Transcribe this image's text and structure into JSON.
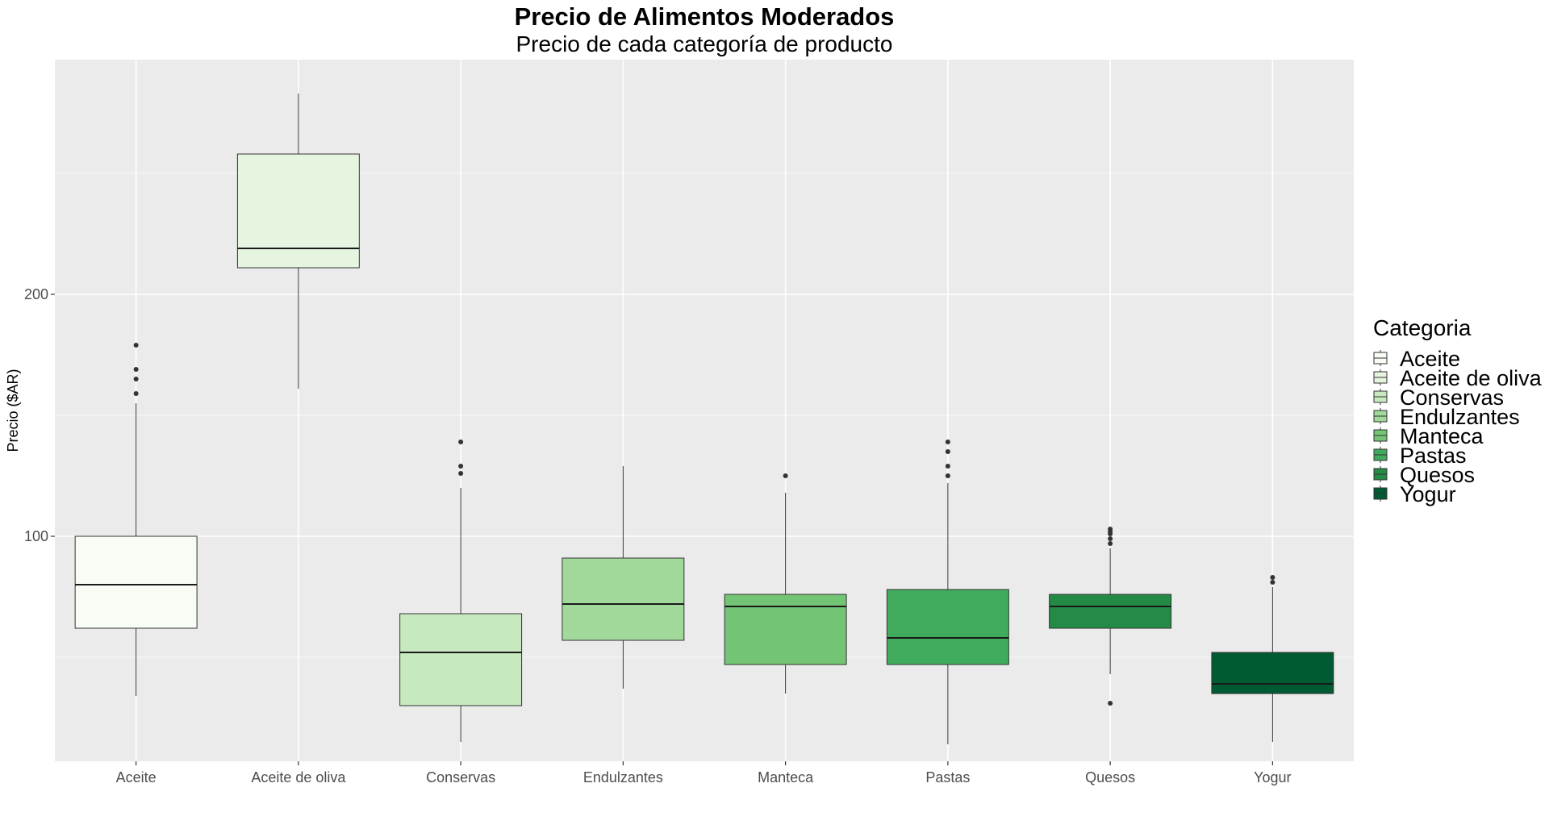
{
  "chart_data": {
    "type": "box",
    "title": "Precio de Alimentos Moderados",
    "subtitle": "Precio de cada categoría de producto",
    "xlabel": "",
    "ylabel": "Precio ($AR)",
    "ylim": [
      7,
      297
    ],
    "y_ticks": [
      100,
      200
    ],
    "grid": true,
    "legend_title": "Categoria",
    "legend_position": "right",
    "categories": [
      "Aceite",
      "Aceite de oliva",
      "Conservas",
      "Endulzantes",
      "Manteca",
      "Pastas",
      "Quesos",
      "Yogur"
    ],
    "boxes": [
      {
        "name": "Aceite",
        "whisker_low": 34,
        "q1": 62,
        "median": 80,
        "q3": 100,
        "whisker_high": 155,
        "outliers": [
          159,
          165,
          169,
          179
        ],
        "color": "#f7fcf5"
      },
      {
        "name": "Aceite de oliva",
        "whisker_low": 161,
        "q1": 211,
        "median": 219,
        "q3": 258,
        "whisker_high": 283,
        "outliers": [],
        "color": "#e5f5e0"
      },
      {
        "name": "Conservas",
        "whisker_low": 15,
        "q1": 30,
        "median": 52,
        "q3": 68,
        "whisker_high": 120,
        "outliers": [
          126,
          129,
          139
        ],
        "color": "#c7e9c0"
      },
      {
        "name": "Endulzantes",
        "whisker_low": 37,
        "q1": 57,
        "median": 72,
        "q3": 91,
        "whisker_high": 129,
        "outliers": [],
        "color": "#a1d99b"
      },
      {
        "name": "Manteca",
        "whisker_low": 35,
        "q1": 47,
        "median": 71,
        "q3": 76,
        "whisker_high": 118,
        "outliers": [
          125
        ],
        "color": "#74c476"
      },
      {
        "name": "Pastas",
        "whisker_low": 14,
        "q1": 47,
        "median": 58,
        "q3": 78,
        "whisker_high": 122,
        "outliers": [
          125,
          129,
          135,
          139
        ],
        "color": "#41ab5d"
      },
      {
        "name": "Quesos",
        "whisker_low": 43,
        "q1": 62,
        "median": 71,
        "q3": 76,
        "whisker_high": 95,
        "outliers": [
          31,
          97,
          99,
          101,
          102,
          103
        ],
        "color": "#238b45"
      },
      {
        "name": "Yogur",
        "whisker_low": 15,
        "q1": 35,
        "median": 39,
        "q3": 52,
        "whisker_high": 79,
        "outliers": [
          81,
          83
        ],
        "color": "#005a32"
      }
    ]
  }
}
